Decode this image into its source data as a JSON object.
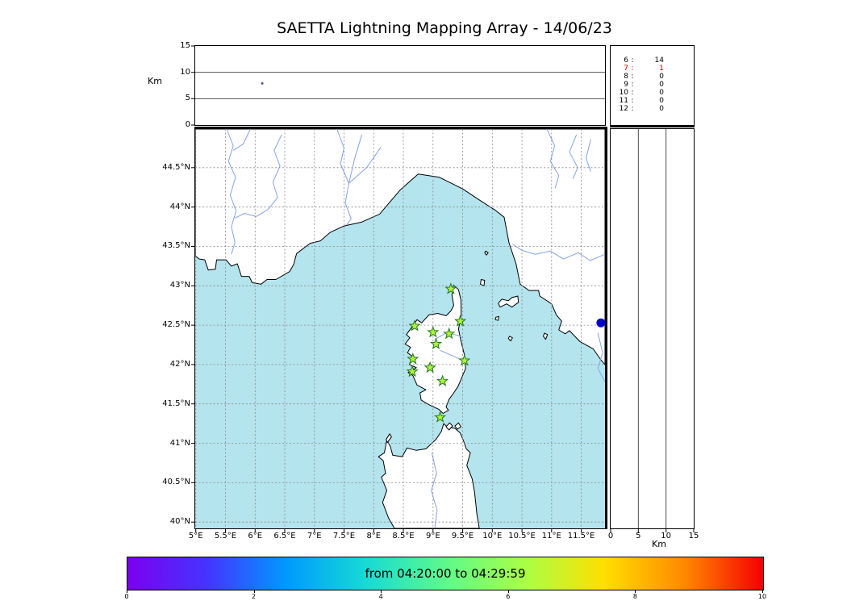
{
  "title": "SAETTA Lightning Mapping Array - 14/06/23",
  "labels": {
    "top_panel_ylabel": "Km",
    "right_panel_xlabel": "Km",
    "counts_separator": ":"
  },
  "styles": {
    "sea_color": "#b4e4ee",
    "land_color": "#ffffff",
    "coast_color": "#000000",
    "river_color": "#84a3e6",
    "grid_color": "#8a8a8a",
    "station_fill": "#b2f23c",
    "station_stroke": "#1f7a1f",
    "highlight_color": "#d40000"
  },
  "chart_data": {
    "type": "scatter",
    "title": "SAETTA Lightning Mapping Array - 14/06/23",
    "map_panel": {
      "lon_min": 4.99,
      "lon_max": 11.9,
      "lat_min": 39.92,
      "lat_max": 44.99,
      "lon_ticks": [
        5,
        5.5,
        6,
        6.5,
        7,
        7.5,
        8,
        8.5,
        9,
        9.5,
        10,
        10.5,
        11,
        11.5
      ],
      "lon_tick_labels": [
        "5°E",
        "5.5°E",
        "6°E",
        "6.5°E",
        "7°E",
        "7.5°E",
        "8°E",
        "8.5°E",
        "9°E",
        "9.5°E",
        "10°E",
        "10.5°E",
        "11°E",
        "11.5°E"
      ],
      "lat_ticks": [
        40,
        40.5,
        41,
        41.5,
        42,
        42.5,
        43,
        43.5,
        44,
        44.5
      ],
      "lat_tick_labels": [
        "40°N",
        "40.5°N",
        "41°N",
        "41.5°N",
        "42°N",
        "42.5°N",
        "43°N",
        "43.5°N",
        "44°N",
        "44.5°N"
      ],
      "grid": "dashed"
    },
    "altitude_axes": {
      "label": "Km",
      "min": 0,
      "max": 15,
      "ticks": [
        0,
        5,
        10,
        15
      ],
      "gridlines": [
        5,
        10
      ]
    },
    "lma_stations_lon_lat": [
      [
        9.3,
        42.96
      ],
      [
        8.69,
        42.49
      ],
      [
        9.0,
        42.41
      ],
      [
        9.27,
        42.39
      ],
      [
        9.46,
        42.55
      ],
      [
        9.05,
        42.26
      ],
      [
        8.66,
        42.07
      ],
      [
        9.53,
        42.05
      ],
      [
        8.65,
        41.91
      ],
      [
        8.95,
        41.96
      ],
      [
        9.16,
        41.79
      ],
      [
        9.12,
        41.33
      ]
    ],
    "lightning_sources": [
      {
        "panel": "map",
        "lon": 11.83,
        "lat": 42.53,
        "color": "#0000cd"
      },
      {
        "panel": "altitude-longitude",
        "lon": 6.12,
        "alt_km": 7.9,
        "color": "#55558f"
      }
    ],
    "altitude_counts": [
      {
        "bin": "6",
        "count": "14",
        "highlight": false
      },
      {
        "bin": "7",
        "count": "1",
        "highlight": true
      },
      {
        "bin": "8",
        "count": "0",
        "highlight": false
      },
      {
        "bin": "9",
        "count": "0",
        "highlight": false
      },
      {
        "bin": "10",
        "count": "0",
        "highlight": false
      },
      {
        "bin": "11",
        "count": "0",
        "highlight": false
      },
      {
        "bin": "12",
        "count": "0",
        "highlight": false
      }
    ],
    "colorbar": {
      "label": "from 04:20:00 to 04:29:59",
      "min": 0,
      "max": 10,
      "ticks": [
        0,
        2,
        4,
        6,
        8,
        10
      ],
      "colors": [
        "#7c00f0",
        "#4434ff",
        "#0099ff",
        "#16dbd4",
        "#5ef98b",
        "#a8ff45",
        "#ffdf00",
        "#ff8a00",
        "#f60000"
      ]
    }
  }
}
